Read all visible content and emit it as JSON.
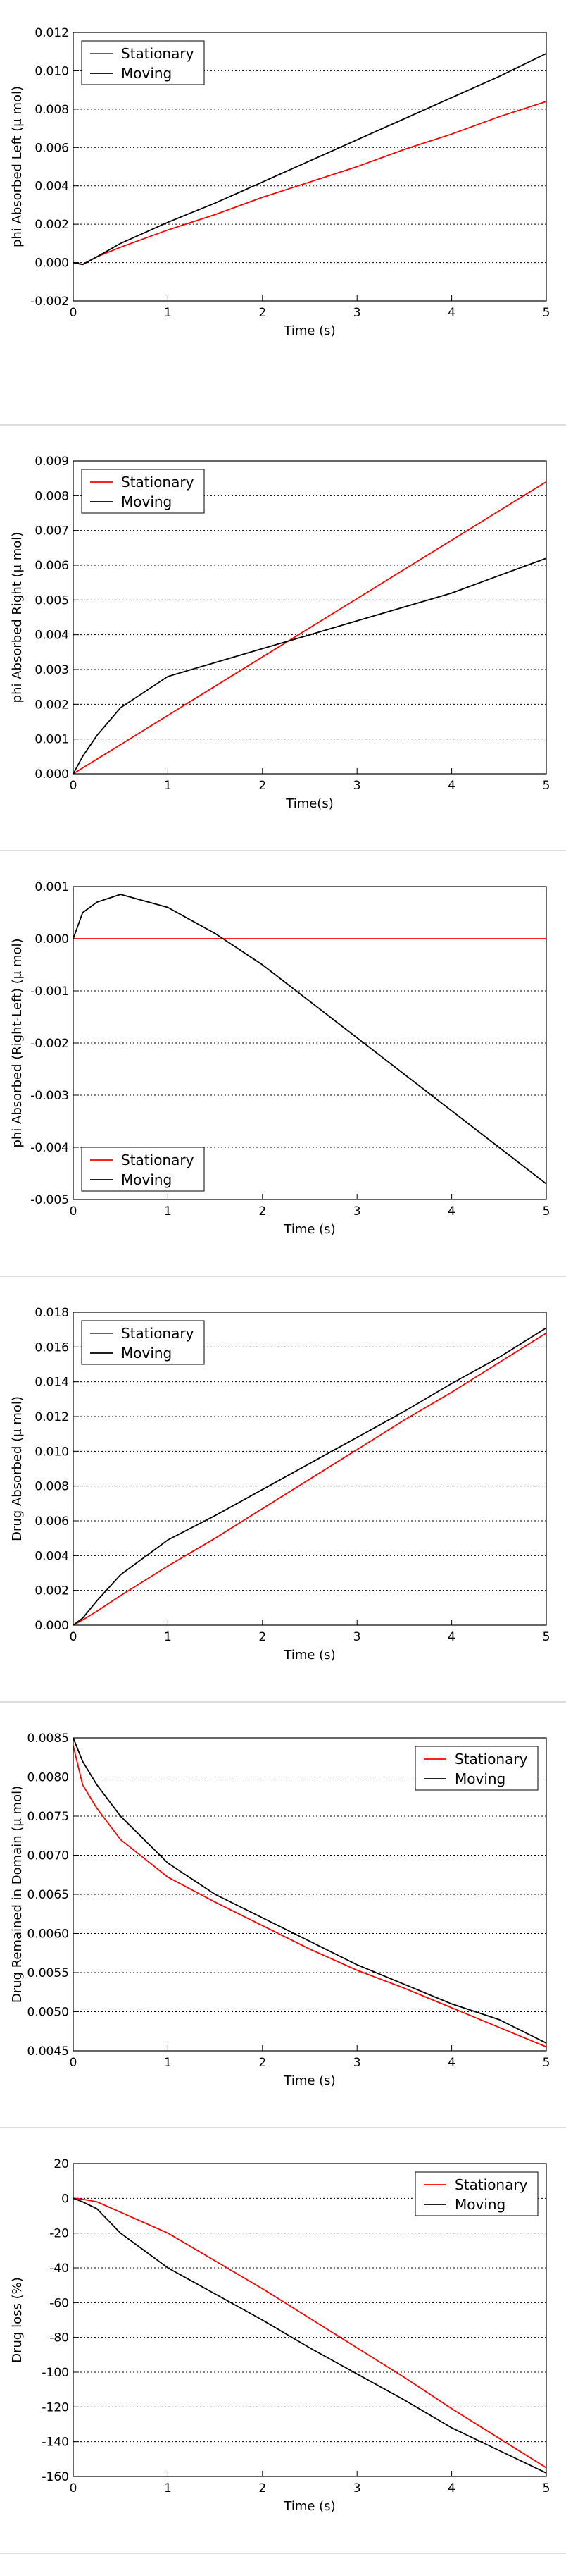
{
  "chart_data": [
    {
      "type": "line",
      "ylabel": "phi Absorbed Left (μ mol)",
      "xlabel": "Time (s)",
      "legend": "upper left",
      "grid": true,
      "x": [
        0,
        0.1,
        0.25,
        0.5,
        1,
        1.5,
        2,
        2.5,
        3,
        3.5,
        4,
        4.5,
        5
      ],
      "series": [
        {
          "name": "Stationary",
          "color": "#ff0000",
          "values": [
            0,
            -0.0001,
            0.0003,
            0.0008,
            0.0017,
            0.0025,
            0.0034,
            0.0042,
            0.005,
            0.0059,
            0.0067,
            0.0076,
            0.0084
          ]
        },
        {
          "name": "Moving",
          "color": "#000000",
          "values": [
            0,
            -0.0001,
            0.0003,
            0.001,
            0.0021,
            0.0031,
            0.0042,
            0.0053,
            0.0064,
            0.0075,
            0.0086,
            0.0097,
            0.0109
          ]
        }
      ],
      "xlim": [
        0,
        5
      ],
      "xticks": [
        0,
        1,
        2,
        3,
        4,
        5
      ],
      "ylim": [
        -0.002,
        0.012
      ],
      "yticks": [
        {
          "value": -0.002,
          "label": "-0.002"
        },
        {
          "value": 0,
          "label": "0.000"
        },
        {
          "value": 0.002,
          "label": "0.002"
        },
        {
          "value": 0.004,
          "label": "0.004"
        },
        {
          "value": 0.006,
          "label": "0.006"
        },
        {
          "value": 0.008,
          "label": "0.008"
        },
        {
          "value": 0.01,
          "label": "0.010"
        },
        {
          "value": 0.012,
          "label": "0.012"
        }
      ]
    },
    {
      "type": "line",
      "ylabel": "phi Absorbed Right (μ mol)",
      "xlabel": "Time(s)",
      "legend": "upper left",
      "grid": true,
      "x": [
        0,
        0.1,
        0.25,
        0.5,
        1,
        1.5,
        2,
        2.5,
        3,
        3.5,
        4,
        4.5,
        5
      ],
      "series": [
        {
          "name": "Stationary",
          "color": "#ff0000",
          "values": [
            0,
            0.00017,
            0.00042,
            0.00084,
            0.00168,
            0.00252,
            0.00336,
            0.0042,
            0.00504,
            0.00588,
            0.00672,
            0.00756,
            0.0084
          ]
        },
        {
          "name": "Moving",
          "color": "#000000",
          "values": [
            0,
            0.0005,
            0.0011,
            0.0019,
            0.0028,
            0.0032,
            0.0036,
            0.004,
            0.0044,
            0.0048,
            0.0052,
            0.0057,
            0.0062
          ]
        }
      ],
      "xlim": [
        0,
        5
      ],
      "xticks": [
        0,
        1,
        2,
        3,
        4,
        5
      ],
      "ylim": [
        0,
        0.009
      ],
      "yticks": [
        {
          "value": 0,
          "label": "0.000"
        },
        {
          "value": 0.001,
          "label": "0.001"
        },
        {
          "value": 0.002,
          "label": "0.002"
        },
        {
          "value": 0.003,
          "label": "0.003"
        },
        {
          "value": 0.004,
          "label": "0.004"
        },
        {
          "value": 0.005,
          "label": "0.005"
        },
        {
          "value": 0.006,
          "label": "0.006"
        },
        {
          "value": 0.007,
          "label": "0.007"
        },
        {
          "value": 0.008,
          "label": "0.008"
        },
        {
          "value": 0.009,
          "label": "0.009"
        }
      ]
    },
    {
      "type": "line",
      "ylabel": "phi Absorbed (Right-Left) (μ mol)",
      "xlabel": "Time (s)",
      "legend": "lower left",
      "grid": true,
      "x": [
        0,
        0.1,
        0.25,
        0.5,
        1,
        1.5,
        2,
        2.5,
        3,
        3.5,
        4,
        4.5,
        5
      ],
      "series": [
        {
          "name": "Stationary",
          "color": "#ff0000",
          "values": [
            0,
            0,
            0,
            0,
            0,
            0,
            0,
            0,
            0,
            0,
            0,
            0,
            0
          ]
        },
        {
          "name": "Moving",
          "color": "#000000",
          "values": [
            0,
            0.0005,
            0.0007,
            0.00085,
            0.0006,
            0.0001,
            -0.0005,
            -0.0012,
            -0.0019,
            -0.0026,
            -0.0033,
            -0.004,
            -0.0047
          ]
        }
      ],
      "xlim": [
        0,
        5
      ],
      "xticks": [
        0,
        1,
        2,
        3,
        4,
        5
      ],
      "ylim": [
        -0.005,
        0.001
      ],
      "yticks": [
        {
          "value": -0.005,
          "label": "-0.005"
        },
        {
          "value": -0.004,
          "label": "-0.004"
        },
        {
          "value": -0.003,
          "label": "-0.003"
        },
        {
          "value": -0.002,
          "label": "-0.002"
        },
        {
          "value": -0.001,
          "label": "-0.001"
        },
        {
          "value": 0,
          "label": "0.000"
        },
        {
          "value": 0.001,
          "label": "0.001"
        }
      ]
    },
    {
      "type": "line",
      "ylabel": "Drug Absorbed (μ mol)",
      "xlabel": "Time (s)",
      "legend": "upper left",
      "grid": true,
      "x": [
        0,
        0.1,
        0.25,
        0.5,
        1,
        1.5,
        2,
        2.5,
        3,
        3.5,
        4,
        4.5,
        5
      ],
      "series": [
        {
          "name": "Stationary",
          "color": "#ff0000",
          "values": [
            0,
            0.0003,
            0.0008,
            0.0017,
            0.0034,
            0.005,
            0.0067,
            0.0084,
            0.0101,
            0.0118,
            0.0134,
            0.0151,
            0.0168
          ]
        },
        {
          "name": "Moving",
          "color": "#000000",
          "values": [
            0,
            0.0004,
            0.0014,
            0.0029,
            0.0049,
            0.0063,
            0.0078,
            0.0093,
            0.0108,
            0.0123,
            0.0139,
            0.0154,
            0.0171
          ]
        }
      ],
      "xlim": [
        0,
        5
      ],
      "xticks": [
        0,
        1,
        2,
        3,
        4,
        5
      ],
      "ylim": [
        0,
        0.018
      ],
      "yticks": [
        {
          "value": 0,
          "label": "0.000"
        },
        {
          "value": 0.002,
          "label": "0.002"
        },
        {
          "value": 0.004,
          "label": "0.004"
        },
        {
          "value": 0.006,
          "label": "0.006"
        },
        {
          "value": 0.008,
          "label": "0.008"
        },
        {
          "value": 0.01,
          "label": "0.010"
        },
        {
          "value": 0.012,
          "label": "0.012"
        },
        {
          "value": 0.014,
          "label": "0.014"
        },
        {
          "value": 0.016,
          "label": "0.016"
        },
        {
          "value": 0.018,
          "label": "0.018"
        }
      ]
    },
    {
      "type": "line",
      "ylabel": "Drug Remained in Domain (μ mol)",
      "xlabel": "Time (s)",
      "legend": "upper right",
      "grid": true,
      "x": [
        0,
        0.1,
        0.25,
        0.5,
        1,
        1.5,
        2,
        2.5,
        3,
        3.5,
        4,
        4.5,
        5
      ],
      "series": [
        {
          "name": "Stationary",
          "color": "#ff0000",
          "values": [
            0.0084,
            0.0079,
            0.0076,
            0.0072,
            0.00672,
            0.0064,
            0.0061,
            0.0058,
            0.00553,
            0.0053,
            0.00505,
            0.0048,
            0.00455
          ]
        },
        {
          "name": "Moving",
          "color": "#000000",
          "values": [
            0.0085,
            0.0082,
            0.0079,
            0.0075,
            0.0069,
            0.0065,
            0.0062,
            0.0059,
            0.0056,
            0.00535,
            0.0051,
            0.0049,
            0.0046
          ]
        }
      ],
      "xlim": [
        0,
        5
      ],
      "xticks": [
        0,
        1,
        2,
        3,
        4,
        5
      ],
      "ylim": [
        0.0045,
        0.0085
      ],
      "yticks": [
        {
          "value": 0.0045,
          "label": "0.0045"
        },
        {
          "value": 0.005,
          "label": "0.0050"
        },
        {
          "value": 0.0055,
          "label": "0.0055"
        },
        {
          "value": 0.006,
          "label": "0.0060"
        },
        {
          "value": 0.0065,
          "label": "0.0065"
        },
        {
          "value": 0.007,
          "label": "0.0070"
        },
        {
          "value": 0.0075,
          "label": "0.0075"
        },
        {
          "value": 0.008,
          "label": "0.0080"
        },
        {
          "value": 0.0085,
          "label": "0.0085"
        }
      ]
    },
    {
      "type": "line",
      "ylabel": "Drug loss (%)",
      "xlabel": "Time (s)",
      "legend": "upper right",
      "grid": true,
      "x": [
        0,
        0.1,
        0.25,
        0.5,
        1,
        1.5,
        2,
        2.5,
        3,
        3.5,
        4,
        4.5,
        5
      ],
      "series": [
        {
          "name": "Stationary",
          "color": "#ff0000",
          "values": [
            0,
            -0.5,
            -2,
            -8,
            -20,
            -36,
            -52,
            -69,
            -86,
            -103,
            -121,
            -138,
            -155
          ]
        },
        {
          "name": "Moving",
          "color": "#000000",
          "values": [
            0,
            -2,
            -6,
            -20,
            -40,
            -55,
            -70,
            -86,
            -101,
            -116,
            -132,
            -145,
            -158
          ]
        }
      ],
      "xlim": [
        0,
        5
      ],
      "xticks": [
        0,
        1,
        2,
        3,
        4,
        5
      ],
      "ylim": [
        -160,
        20
      ],
      "yticks": [
        -160,
        -140,
        -120,
        -100,
        -80,
        -60,
        -40,
        -20,
        0,
        20
      ]
    }
  ]
}
